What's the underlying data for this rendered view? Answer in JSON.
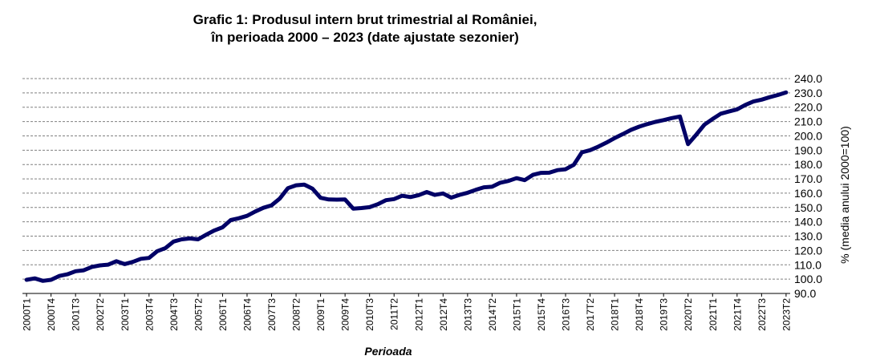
{
  "chart_data": {
    "type": "line",
    "title_line1": "Grafic 1: Produsul intern brut trimestrial al României,",
    "title_line2": "în perioada 2000 – 2023 (date ajustate sezonier)",
    "xlabel": "Perioada",
    "ylabel": "% (media anului 2000=100)",
    "ylim": [
      90,
      240
    ],
    "ystep": 10,
    "grid": true,
    "line_color": "#000066",
    "grid_color": "#808080",
    "x": [
      "2000T1",
      "2000T2",
      "2000T3",
      "2000T4",
      "2001T1",
      "2001T2",
      "2001T3",
      "2001T4",
      "2002T1",
      "2002T2",
      "2002T3",
      "2002T4",
      "2003T1",
      "2003T2",
      "2003T3",
      "2003T4",
      "2004T1",
      "2004T2",
      "2004T3",
      "2004T4",
      "2005T1",
      "2005T2",
      "2005T3",
      "2005T4",
      "2006T1",
      "2006T2",
      "2006T3",
      "2006T4",
      "2007T1",
      "2007T2",
      "2007T3",
      "2007T4",
      "2008T1",
      "2008T2",
      "2008T3",
      "2008T4",
      "2009T1",
      "2009T2",
      "2009T3",
      "2009T4",
      "2010T1",
      "2010T2",
      "2010T3",
      "2010T4",
      "2011T1",
      "2011T2",
      "2011T3",
      "2011T4",
      "2012T1",
      "2012T2",
      "2012T3",
      "2012T4",
      "2013T1",
      "2013T2",
      "2013T3",
      "2013T4",
      "2014T1",
      "2014T2",
      "2014T3",
      "2014T4",
      "2015T1",
      "2015T2",
      "2015T3",
      "2015T4",
      "2016T1",
      "2016T2",
      "2016T3",
      "2016T4",
      "2017T1",
      "2017T2",
      "2017T3",
      "2017T4",
      "2018T1",
      "2018T2",
      "2018T3",
      "2018T4",
      "2019T1",
      "2019T2",
      "2019T3",
      "2019T4",
      "2020T1",
      "2020T2",
      "2020T3",
      "2020T4",
      "2021T1",
      "2021T2",
      "2021T3",
      "2021T4",
      "2022T1",
      "2022T2",
      "2022T3",
      "2022T4",
      "2023T1",
      "2023T2"
    ],
    "tick_labels": [
      "2000T1",
      "2000T4",
      "2001T3",
      "2002T2",
      "2003T1",
      "2003T4",
      "2004T3",
      "2005T2",
      "2006T1",
      "2006T4",
      "2007T3",
      "2008T2",
      "2009T1",
      "2009T4",
      "2010T3",
      "2011T2",
      "2012T1",
      "2012T4",
      "2013T3",
      "2014T2",
      "2015T1",
      "2015T4",
      "2016T3",
      "2017T2",
      "2018T1",
      "2018T4",
      "2019T3",
      "2020T2",
      "2021T1",
      "2021T4",
      "2022T3",
      "2023T2"
    ],
    "series": [
      {
        "values": [
          99.5,
          100.5,
          98.8,
          99.5,
          102.2,
          103.4,
          105.5,
          106.2,
          108.5,
          109.6,
          110.1,
          112.5,
          110.5,
          112.0,
          114.2,
          114.8,
          119.5,
          121.7,
          126.2,
          127.8,
          128.4,
          127.8,
          131.0,
          134.0,
          136.2,
          141.2,
          142.5,
          144.2,
          147.2,
          149.8,
          151.5,
          156.2,
          163.5,
          165.5,
          166.0,
          163.2,
          156.8,
          155.6,
          155.5,
          155.6,
          149.2,
          149.6,
          150.2,
          152.3,
          155.1,
          155.9,
          158.2,
          157.3,
          158.6,
          160.8,
          158.8,
          159.8,
          156.9,
          158.8,
          160.3,
          162.3,
          164.1,
          164.5,
          167.3,
          168.5,
          170.5,
          169.1,
          172.8,
          174.2,
          174.3,
          176.1,
          176.7,
          179.8,
          188.5,
          190.0,
          192.5,
          195.3,
          198.4,
          201.2,
          204.2,
          206.4,
          208.2,
          209.8,
          211.0,
          212.4,
          213.5,
          194.2,
          200.8,
          207.8,
          211.8,
          215.5,
          217.0,
          218.5,
          221.6,
          224.0,
          225.3,
          227.0,
          228.5,
          230.3
        ]
      }
    ]
  }
}
